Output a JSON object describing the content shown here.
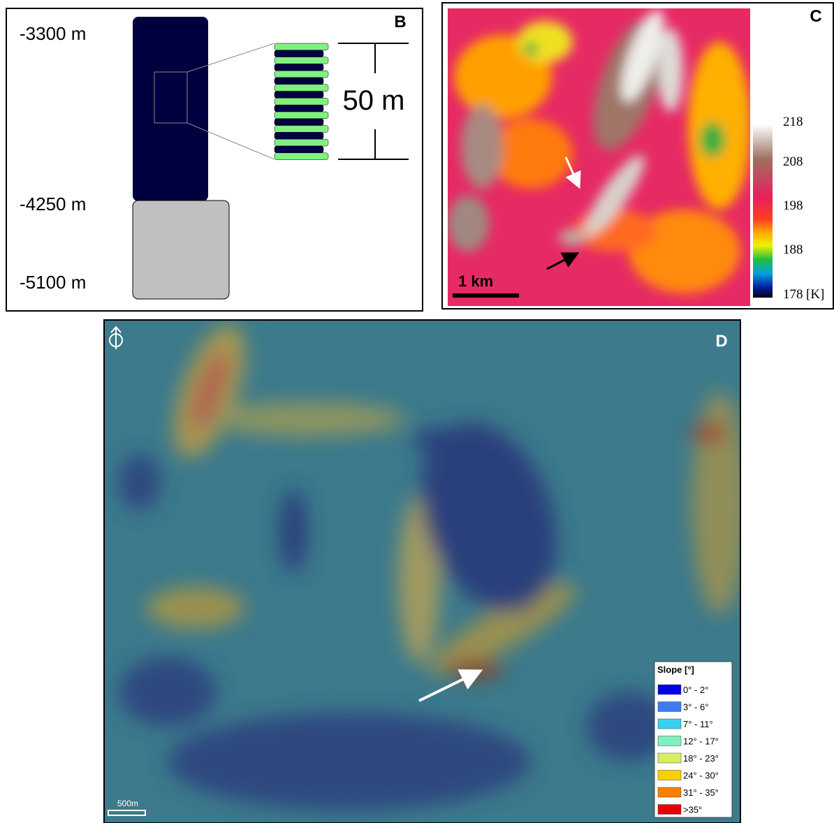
{
  "panel_b": {
    "label": "B",
    "depths": [
      "-3300 m",
      "-4250 m",
      "-5100 m"
    ],
    "scale": "50 m"
  },
  "panel_c": {
    "label": "C",
    "scale": "1 km",
    "colorbar": {
      "ticks": [
        218,
        208,
        198,
        188,
        178
      ],
      "unit": "[K]"
    }
  },
  "panel_d": {
    "label": "D",
    "scale": "500m",
    "legend": {
      "title": "Slope [°]",
      "items": [
        {
          "label": "0° - 2°",
          "color": "#0000e8"
        },
        {
          "label": "3° - 6°",
          "color": "#3a7cf0"
        },
        {
          "label": "7° - 11°",
          "color": "#38d0f0"
        },
        {
          "label": "12° - 17°",
          "color": "#80f0c0"
        },
        {
          "label": "18° - 23°",
          "color": "#d4f060"
        },
        {
          "label": "24° - 30°",
          "color": "#f8d000"
        },
        {
          "label": "31° - 35°",
          "color": "#f88000"
        },
        {
          "label": ">35°",
          "color": "#e80000"
        }
      ]
    }
  }
}
